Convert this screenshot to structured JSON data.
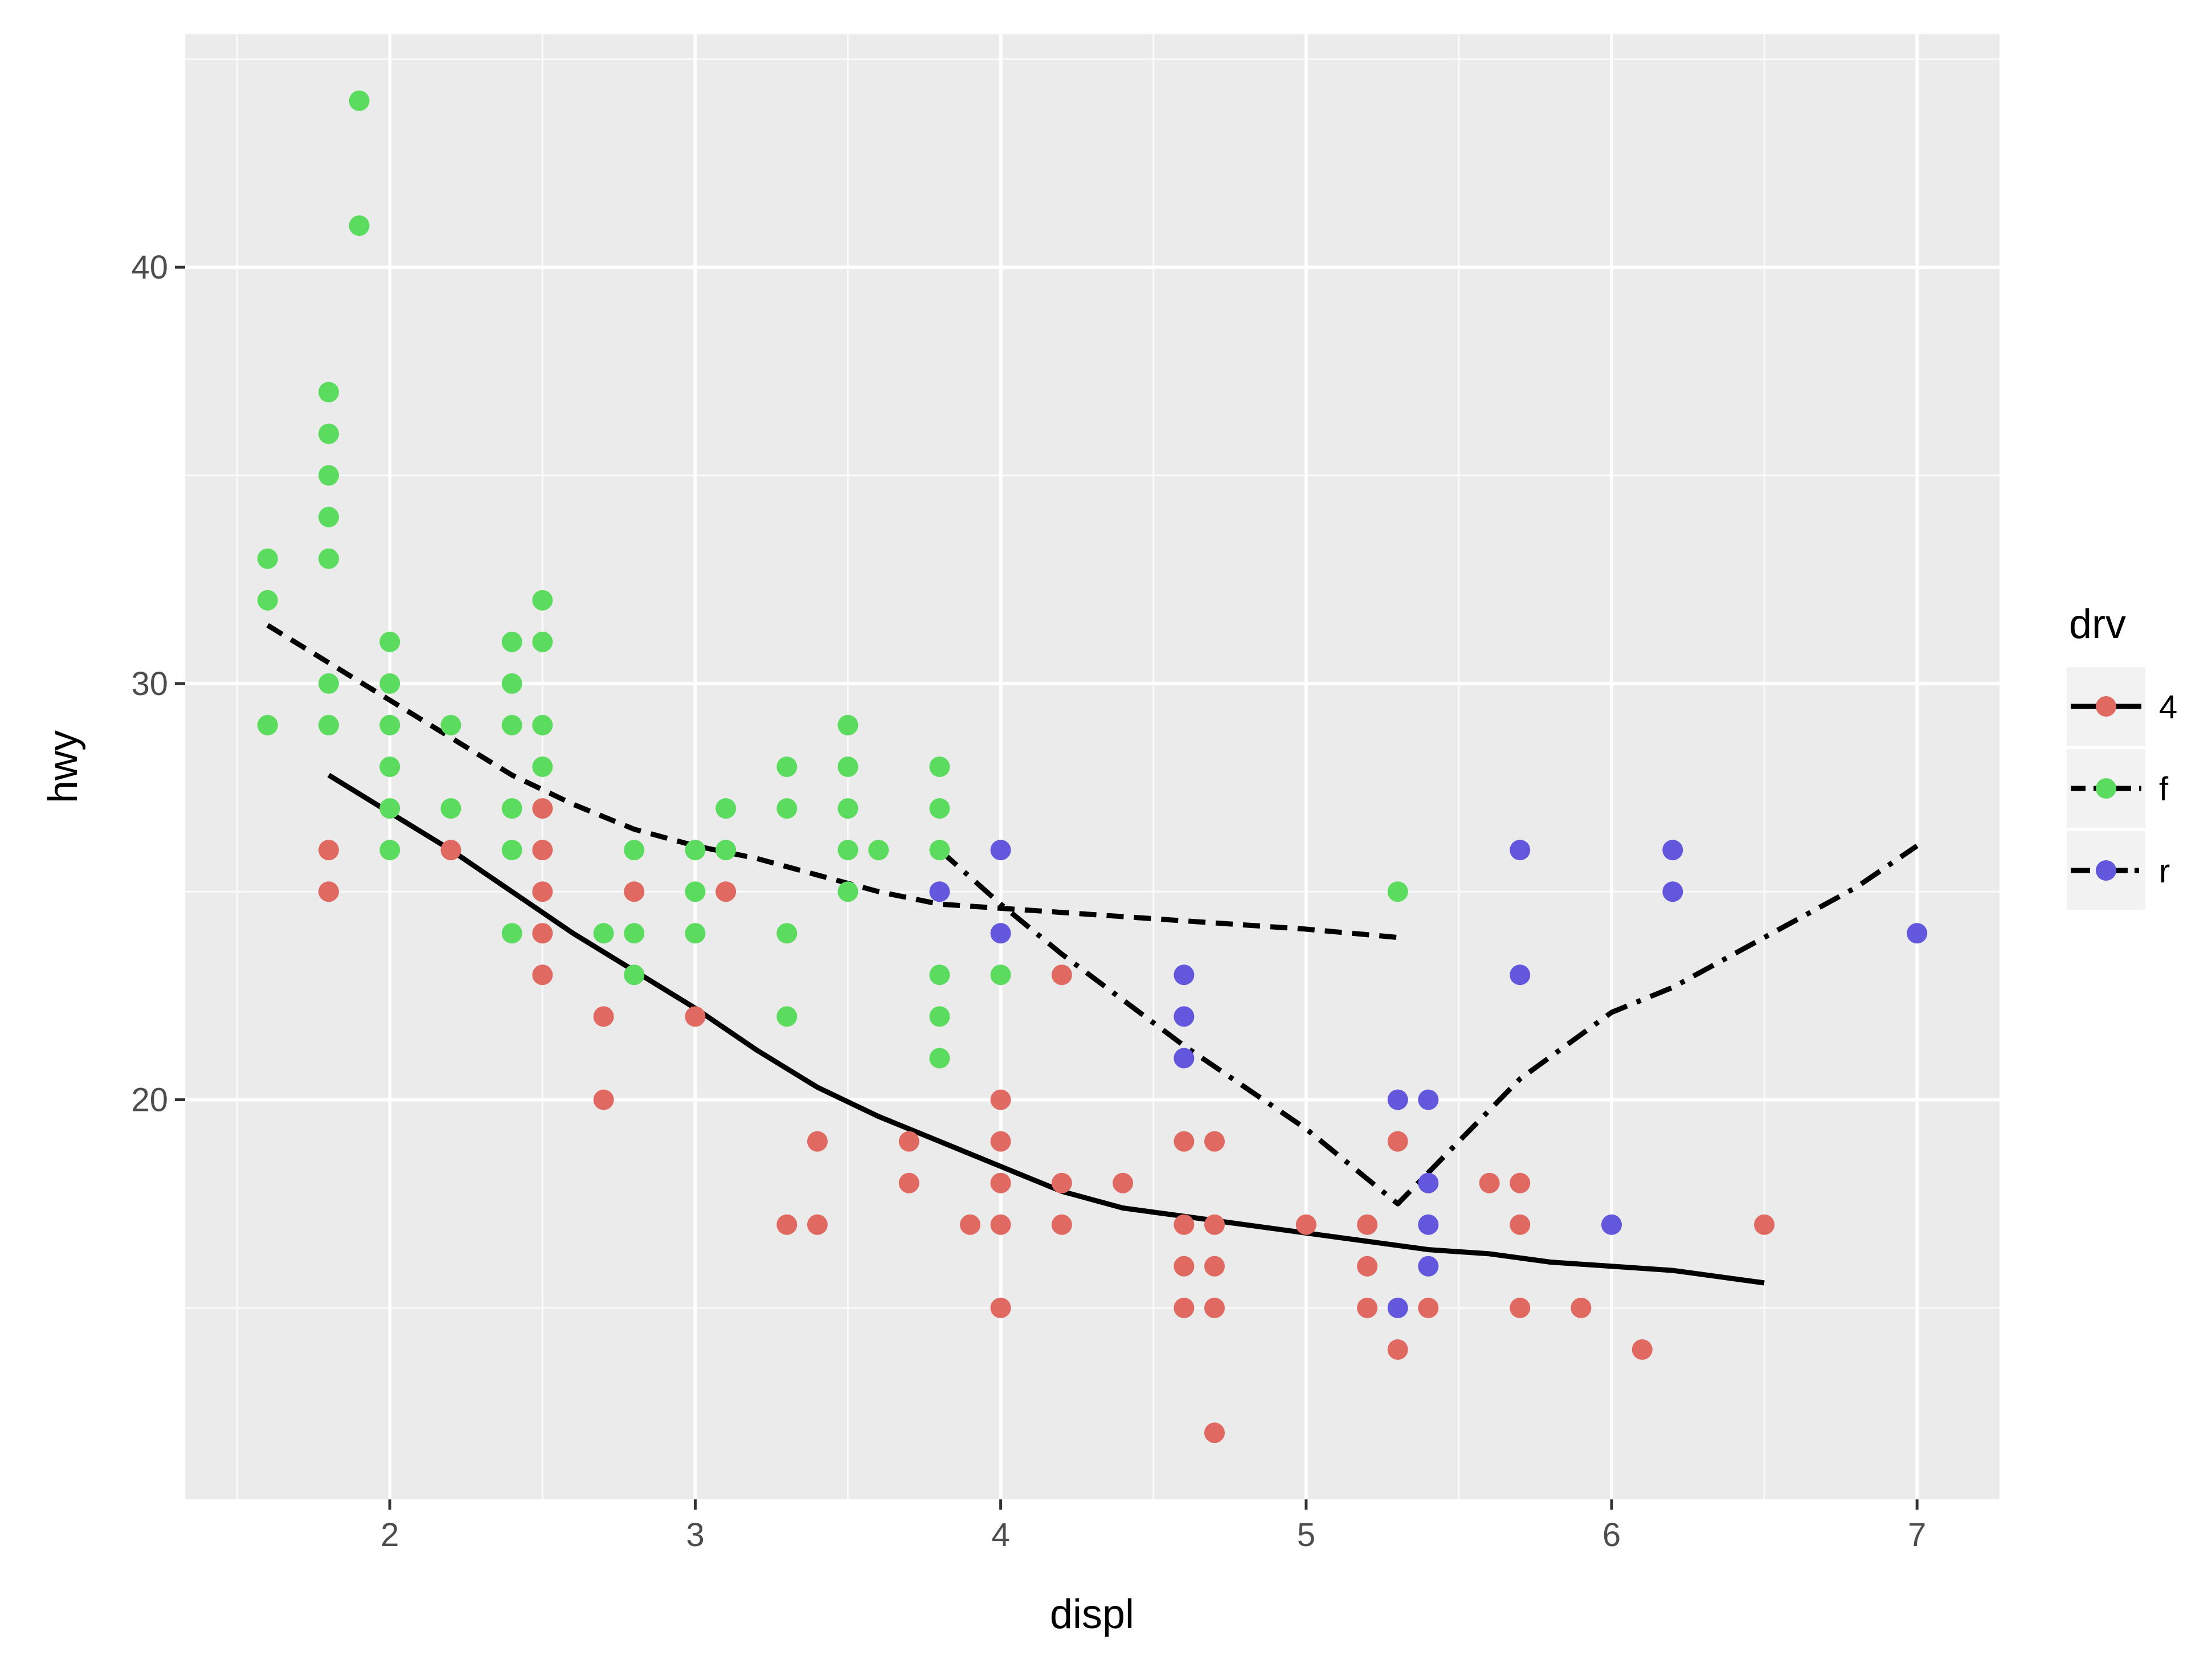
{
  "chart_data": {
    "type": "scatter",
    "title": "",
    "xlabel": "displ",
    "ylabel": "hwy",
    "xlim": [
      1.33,
      7.27
    ],
    "ylim": [
      10.4,
      45.6
    ],
    "xticks": [
      2,
      3,
      4,
      5,
      6,
      7
    ],
    "yticks": [
      20,
      30,
      40
    ],
    "grid": true,
    "legend": {
      "title": "drv",
      "placement": "right",
      "entries": [
        {
          "label": "4",
          "color": "#E06A62",
          "linestyle": "solid"
        },
        {
          "label": "f",
          "color": "#5CDC5F",
          "linestyle": "dashed"
        },
        {
          "label": "r",
          "color": "#6257DD",
          "linestyle": "dotdash"
        }
      ]
    },
    "series": [
      {
        "name": "4",
        "color": "#E06A62",
        "points": [
          [
            1.8,
            26
          ],
          [
            1.8,
            25
          ],
          [
            2.2,
            26
          ],
          [
            2.5,
            27
          ],
          [
            2.5,
            26
          ],
          [
            2.5,
            25
          ],
          [
            2.5,
            24
          ],
          [
            2.5,
            23
          ],
          [
            2.7,
            22
          ],
          [
            2.7,
            20
          ],
          [
            2.8,
            25
          ],
          [
            3.0,
            22
          ],
          [
            3.1,
            25
          ],
          [
            3.3,
            17
          ],
          [
            3.4,
            19
          ],
          [
            3.4,
            17
          ],
          [
            3.7,
            19
          ],
          [
            3.7,
            18
          ],
          [
            3.9,
            17
          ],
          [
            4.0,
            20
          ],
          [
            4.0,
            19
          ],
          [
            4.0,
            18
          ],
          [
            4.0,
            17
          ],
          [
            4.0,
            15
          ],
          [
            4.2,
            23
          ],
          [
            4.2,
            18
          ],
          [
            4.2,
            17
          ],
          [
            4.4,
            18
          ],
          [
            4.6,
            19
          ],
          [
            4.6,
            17
          ],
          [
            4.6,
            16
          ],
          [
            4.6,
            15
          ],
          [
            4.7,
            19
          ],
          [
            4.7,
            17
          ],
          [
            4.7,
            16
          ],
          [
            4.7,
            15
          ],
          [
            4.7,
            12
          ],
          [
            5.0,
            17
          ],
          [
            5.2,
            17
          ],
          [
            5.2,
            16
          ],
          [
            5.2,
            15
          ],
          [
            5.3,
            19
          ],
          [
            5.3,
            14
          ],
          [
            5.4,
            15
          ],
          [
            5.6,
            18
          ],
          [
            5.7,
            18
          ],
          [
            5.7,
            17
          ],
          [
            5.7,
            15
          ],
          [
            5.9,
            15
          ],
          [
            6.1,
            14
          ],
          [
            6.5,
            17
          ]
        ],
        "smooth": [
          [
            1.8,
            27.8
          ],
          [
            2.0,
            26.9
          ],
          [
            2.2,
            26.0
          ],
          [
            2.4,
            25.0
          ],
          [
            2.6,
            24.0
          ],
          [
            2.8,
            23.1
          ],
          [
            3.0,
            22.2
          ],
          [
            3.2,
            21.2
          ],
          [
            3.4,
            20.3
          ],
          [
            3.6,
            19.6
          ],
          [
            3.8,
            19.0
          ],
          [
            4.0,
            18.4
          ],
          [
            4.2,
            17.8
          ],
          [
            4.4,
            17.4
          ],
          [
            4.6,
            17.2
          ],
          [
            4.8,
            17.0
          ],
          [
            5.0,
            16.8
          ],
          [
            5.2,
            16.6
          ],
          [
            5.4,
            16.4
          ],
          [
            5.6,
            16.3
          ],
          [
            5.8,
            16.1
          ],
          [
            6.0,
            16.0
          ],
          [
            6.2,
            15.9
          ],
          [
            6.4,
            15.7
          ],
          [
            6.5,
            15.6
          ]
        ]
      },
      {
        "name": "f",
        "color": "#5CDC5F",
        "points": [
          [
            1.6,
            33
          ],
          [
            1.6,
            32
          ],
          [
            1.6,
            29
          ],
          [
            1.8,
            37
          ],
          [
            1.8,
            36
          ],
          [
            1.8,
            35
          ],
          [
            1.8,
            34
          ],
          [
            1.8,
            33
          ],
          [
            1.8,
            30
          ],
          [
            1.8,
            29
          ],
          [
            1.9,
            44
          ],
          [
            1.9,
            41
          ],
          [
            2.0,
            31
          ],
          [
            2.0,
            30
          ],
          [
            2.0,
            29
          ],
          [
            2.0,
            28
          ],
          [
            2.0,
            27
          ],
          [
            2.0,
            26
          ],
          [
            2.2,
            29
          ],
          [
            2.2,
            27
          ],
          [
            2.4,
            31
          ],
          [
            2.4,
            30
          ],
          [
            2.4,
            29
          ],
          [
            2.4,
            27
          ],
          [
            2.4,
            26
          ],
          [
            2.4,
            24
          ],
          [
            2.5,
            32
          ],
          [
            2.5,
            31
          ],
          [
            2.5,
            29
          ],
          [
            2.5,
            28
          ],
          [
            2.7,
            24
          ],
          [
            2.8,
            26
          ],
          [
            2.8,
            24
          ],
          [
            2.8,
            23
          ],
          [
            3.0,
            26
          ],
          [
            3.0,
            25
          ],
          [
            3.0,
            24
          ],
          [
            3.1,
            27
          ],
          [
            3.1,
            26
          ],
          [
            3.3,
            28
          ],
          [
            3.3,
            27
          ],
          [
            3.3,
            24
          ],
          [
            3.3,
            22
          ],
          [
            3.5,
            29
          ],
          [
            3.5,
            28
          ],
          [
            3.5,
            27
          ],
          [
            3.5,
            26
          ],
          [
            3.5,
            25
          ],
          [
            3.6,
            26
          ],
          [
            3.8,
            28
          ],
          [
            3.8,
            27
          ],
          [
            3.8,
            26
          ],
          [
            3.8,
            23
          ],
          [
            3.8,
            22
          ],
          [
            3.8,
            21
          ],
          [
            4.0,
            23
          ],
          [
            5.3,
            25
          ]
        ],
        "smooth": [
          [
            1.6,
            31.4
          ],
          [
            1.8,
            30.5
          ],
          [
            2.0,
            29.6
          ],
          [
            2.2,
            28.7
          ],
          [
            2.4,
            27.8
          ],
          [
            2.6,
            27.1
          ],
          [
            2.8,
            26.5
          ],
          [
            3.0,
            26.1
          ],
          [
            3.2,
            25.8
          ],
          [
            3.4,
            25.4
          ],
          [
            3.6,
            25.0
          ],
          [
            3.8,
            24.7
          ],
          [
            4.0,
            24.6
          ],
          [
            4.2,
            24.5
          ],
          [
            4.4,
            24.4
          ],
          [
            4.6,
            24.3
          ],
          [
            4.8,
            24.2
          ],
          [
            5.0,
            24.1
          ],
          [
            5.3,
            23.9
          ]
        ]
      },
      {
        "name": "r",
        "color": "#6257DD",
        "points": [
          [
            3.8,
            25
          ],
          [
            4.0,
            26
          ],
          [
            4.0,
            24
          ],
          [
            4.6,
            23
          ],
          [
            4.6,
            22
          ],
          [
            4.6,
            21
          ],
          [
            5.3,
            20
          ],
          [
            5.3,
            15
          ],
          [
            5.4,
            20
          ],
          [
            5.4,
            18
          ],
          [
            5.4,
            17
          ],
          [
            5.4,
            16
          ],
          [
            5.7,
            26
          ],
          [
            5.7,
            23
          ],
          [
            6.0,
            17
          ],
          [
            6.2,
            26
          ],
          [
            6.2,
            25
          ],
          [
            7.0,
            24
          ]
        ],
        "smooth": [
          [
            3.8,
            26.0
          ],
          [
            4.0,
            24.7
          ],
          [
            4.2,
            23.5
          ],
          [
            4.4,
            22.4
          ],
          [
            4.6,
            21.3
          ],
          [
            4.8,
            20.3
          ],
          [
            5.0,
            19.3
          ],
          [
            5.15,
            18.4
          ],
          [
            5.3,
            17.5
          ],
          [
            5.5,
            19.0
          ],
          [
            5.7,
            20.5
          ],
          [
            6.0,
            22.1
          ],
          [
            6.2,
            22.7
          ],
          [
            6.5,
            23.9
          ],
          [
            6.8,
            25.1
          ],
          [
            7.0,
            26.1
          ]
        ]
      }
    ]
  }
}
